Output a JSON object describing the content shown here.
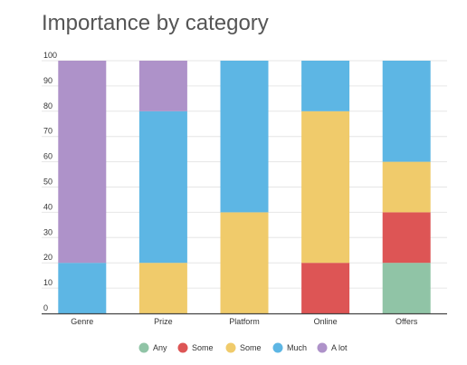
{
  "chart_data": {
    "type": "bar",
    "stacked": true,
    "title": "Importance by category",
    "xlabel": "",
    "ylabel": "",
    "ylim": [
      0,
      100
    ],
    "yticks": [
      0,
      10,
      20,
      30,
      40,
      50,
      60,
      70,
      80,
      90,
      100
    ],
    "grid": true,
    "legend_position": "bottom",
    "categories": [
      "Genre",
      "Prize",
      "Platform",
      "Online",
      "Offers"
    ],
    "series": [
      {
        "name": "Any",
        "color": "#90c4a6",
        "values": [
          0,
          0,
          0,
          0,
          20
        ]
      },
      {
        "name": "Some",
        "color": "#dd5555",
        "values": [
          0,
          0,
          0,
          20,
          20
        ]
      },
      {
        "name": "Some",
        "color": "#f0cb6b",
        "values": [
          0,
          20,
          40,
          60,
          20
        ]
      },
      {
        "name": "Much",
        "color": "#5db6e4",
        "values": [
          20,
          60,
          60,
          20,
          40
        ]
      },
      {
        "name": "A lot",
        "color": "#ae92c9",
        "values": [
          80,
          20,
          0,
          0,
          0
        ]
      }
    ]
  }
}
